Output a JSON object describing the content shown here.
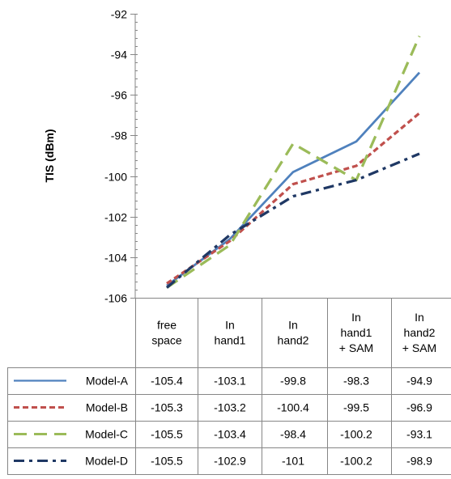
{
  "chart_data": {
    "type": "line",
    "title": "",
    "xlabel": "",
    "ylabel": "TIS (dBm)",
    "ylim": [
      -106,
      -92
    ],
    "yticks": [
      "-92",
      "-94",
      "-96",
      "-98",
      "-100",
      "-102",
      "-104",
      "-106"
    ],
    "ytick_values": [
      -92,
      -94,
      -96,
      -98,
      -100,
      -102,
      -104,
      -106
    ],
    "grid": false,
    "legend": "data-table",
    "categories": [
      [
        "free",
        "space"
      ],
      [
        "In",
        "hand1"
      ],
      [
        "In",
        "hand2"
      ],
      [
        "In",
        "hand1",
        "+ SAM"
      ],
      [
        "In",
        "hand2",
        "+ SAM"
      ]
    ],
    "series": [
      {
        "name": "Model-A",
        "color": "#4f81bd",
        "dash": "solid",
        "values": [
          -105.4,
          -103.1,
          -99.8,
          -98.3,
          -94.9
        ],
        "labels": [
          "-105.4",
          "-103.1",
          "-99.8",
          "-98.3",
          "-94.9"
        ]
      },
      {
        "name": "Model-B",
        "color": "#c0504d",
        "dash": "dash",
        "values": [
          -105.3,
          -103.2,
          -100.4,
          -99.5,
          -96.9
        ],
        "labels": [
          "-105.3",
          "-103.2",
          "-100.4",
          "-99.5",
          "-96.9"
        ]
      },
      {
        "name": "Model-C",
        "color": "#9bbb59",
        "dash": "longdash",
        "values": [
          -105.5,
          -103.4,
          -98.4,
          -100.2,
          -93.1
        ],
        "labels": [
          "-105.5",
          "-103.4",
          "-98.4",
          "-100.2",
          "-93.1"
        ]
      },
      {
        "name": "Model-D",
        "color": "#1f3864",
        "dash": "dashdot",
        "values": [
          -105.5,
          -102.9,
          -101,
          -100.2,
          -98.9
        ],
        "labels": [
          "-105.5",
          "-102.9",
          "-101",
          "-100.2",
          "-98.9"
        ]
      }
    ]
  }
}
